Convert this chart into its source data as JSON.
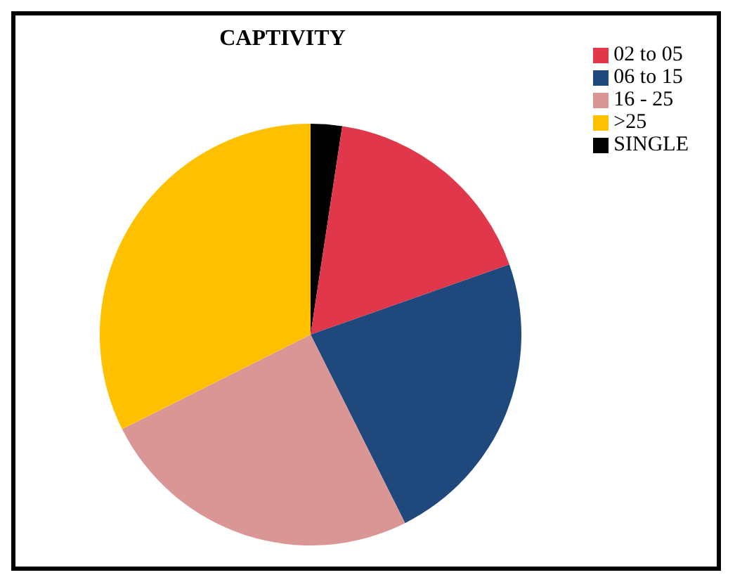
{
  "chart_data": {
    "type": "pie",
    "title": "CAPTIVITY",
    "categories": [
      "SINGLE",
      "02 to 05",
      "06 to 15",
      "16 - 25",
      ">25"
    ],
    "values": [
      2.4,
      17.2,
      23,
      25,
      32.4
    ],
    "colors": [
      "#000000",
      "#e0384a",
      "#1f497d",
      "#d99694",
      "#ffc000"
    ],
    "legend": "top right"
  }
}
